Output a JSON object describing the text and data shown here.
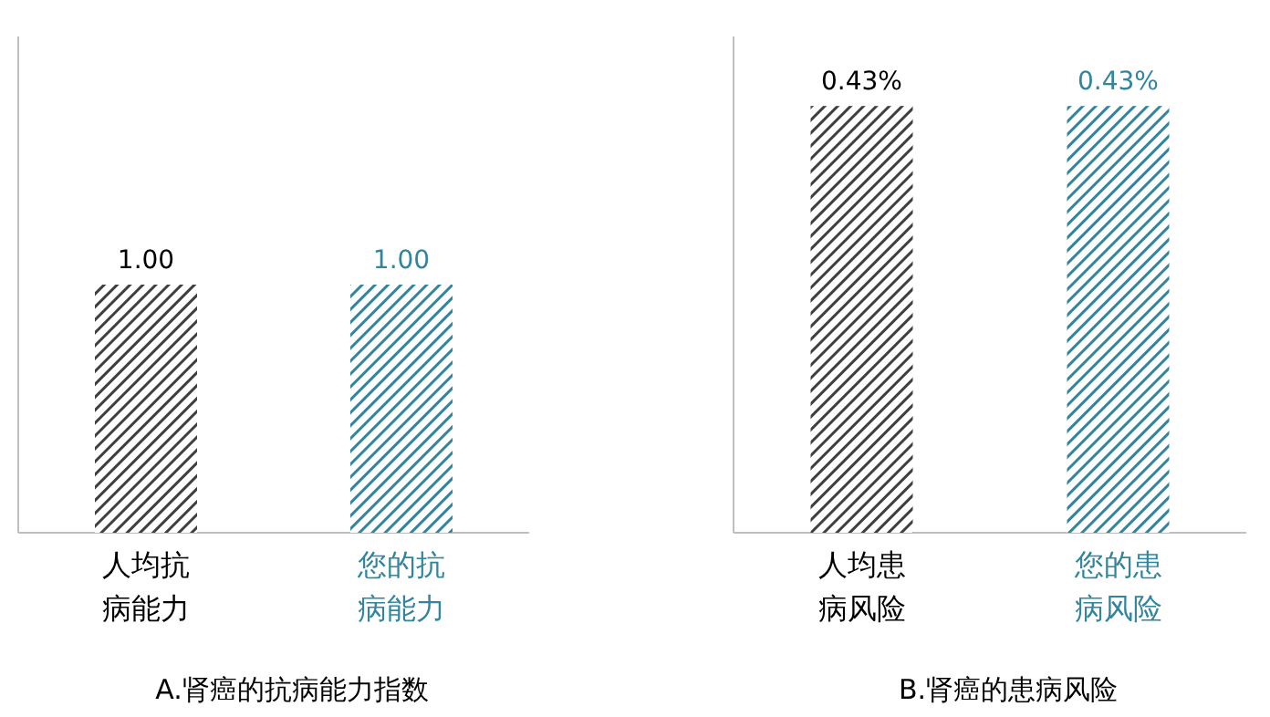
{
  "chart_data": [
    {
      "type": "bar",
      "title": "A.肾癌的抗病能力指数",
      "categories": [
        "人均抗病能力",
        "您的抗病能力"
      ],
      "values": [
        1.0,
        1.0
      ],
      "value_labels": [
        "1.00",
        "1.00"
      ],
      "colors": [
        "#3f3f3f",
        "#31859c"
      ],
      "ylim": [
        0,
        2
      ],
      "tick_labels": false
    },
    {
      "type": "bar",
      "title": "B.肾癌的患病风险",
      "categories": [
        "人均患病风险",
        "您的患病风险"
      ],
      "values": [
        0.43,
        0.43
      ],
      "value_labels": [
        "0.43%",
        "0.43%"
      ],
      "colors": [
        "#3f3f3f",
        "#31859c"
      ],
      "ylim": [
        0,
        0.5
      ],
      "tick_labels": false
    }
  ]
}
